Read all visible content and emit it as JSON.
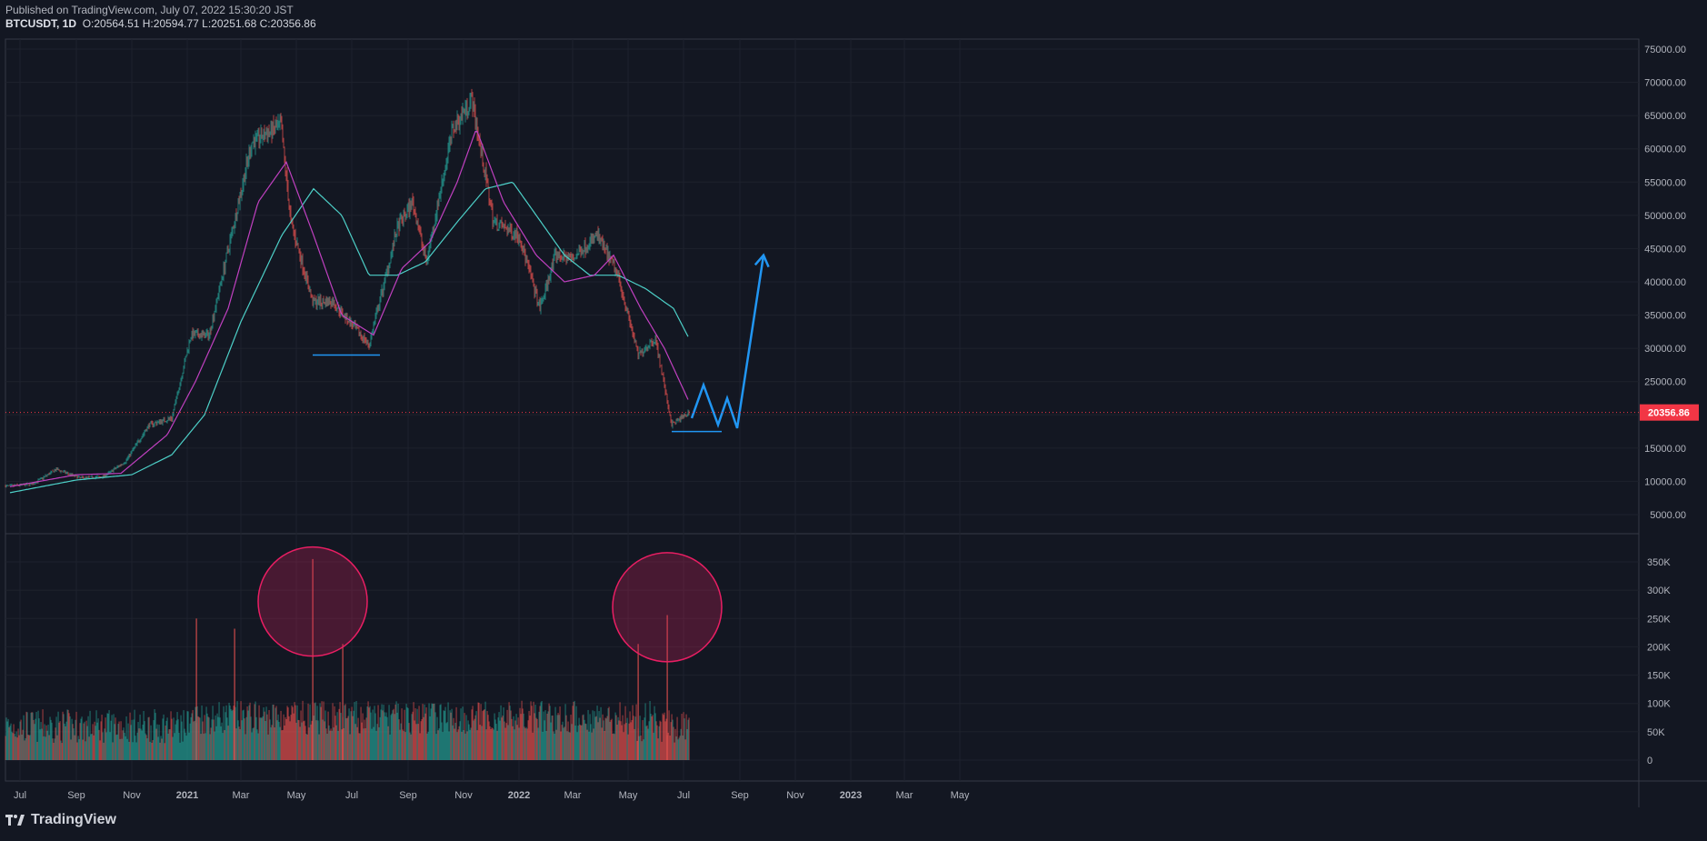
{
  "header": {
    "published": "Published on TradingView.com, July 07, 2022 15:30:20 JST",
    "symbol": "BTCUSDT, 1D",
    "o_label": "O:",
    "o": "20564.51",
    "h_label": "H:",
    "h": "20594.77",
    "l_label": "L:",
    "l": "20251.68",
    "c_label": "C:",
    "c": "20356.86"
  },
  "footer": {
    "brand": "TradingView"
  },
  "colors": {
    "background": "#131722",
    "up": "#26a69a",
    "down": "#ef5350",
    "ma_fast": "#c040c0",
    "ma_slow": "#4dd0c8",
    "drawing": "#2196f3",
    "price_badge": "#f23645",
    "circle": "#e91e63"
  },
  "chart_data": [
    {
      "type": "candlestick",
      "symbol": "BTCUSDT",
      "interval": "1D",
      "x_ticks": [
        "Jul",
        "Sep",
        "Nov",
        "2021",
        "Mar",
        "May",
        "Jul",
        "Sep",
        "Nov",
        "2022",
        "Mar",
        "May",
        "Jul",
        "Sep",
        "Nov",
        "2023",
        "Mar",
        "May"
      ],
      "y_ticks": [
        "5000.00",
        "10000.00",
        "15000.00",
        "20000.00",
        "25000.00",
        "30000.00",
        "35000.00",
        "40000.00",
        "45000.00",
        "50000.00",
        "55000.00",
        "60000.00",
        "65000.00",
        "70000.00",
        "75000.00"
      ],
      "ylim": [
        0,
        78000
      ],
      "last_price": "20356.86",
      "price_path": {
        "dates": [
          "2020-06-20",
          "2020-07-15",
          "2020-08-10",
          "2020-09-05",
          "2020-10-01",
          "2020-10-25",
          "2020-11-20",
          "2020-12-15",
          "2021-01-05",
          "2021-01-25",
          "2021-02-20",
          "2021-03-13",
          "2021-04-14",
          "2021-04-25",
          "2021-05-19",
          "2021-06-10",
          "2021-07-20",
          "2021-08-20",
          "2021-09-06",
          "2021-09-21",
          "2021-10-20",
          "2021-11-10",
          "2021-12-04",
          "2022-01-01",
          "2022-01-24",
          "2022-02-10",
          "2022-03-01",
          "2022-03-28",
          "2022-04-20",
          "2022-05-12",
          "2022-05-31",
          "2022-06-18",
          "2022-07-07"
        ],
        "close": [
          9300,
          9600,
          11800,
          10500,
          10700,
          13000,
          18500,
          19500,
          32000,
          32000,
          48000,
          61000,
          63500,
          49000,
          37000,
          37000,
          30500,
          48000,
          52000,
          43000,
          63000,
          67500,
          49000,
          47000,
          36000,
          44000,
          43500,
          47000,
          41000,
          29000,
          31500,
          18500,
          20356
        ]
      },
      "ma_fast": {
        "dates": [
          "2020-06-20",
          "2020-09-01",
          "2020-10-20",
          "2020-12-10",
          "2021-01-10",
          "2021-02-15",
          "2021-03-20",
          "2021-04-20",
          "2021-05-20",
          "2021-06-20",
          "2021-07-25",
          "2021-08-25",
          "2021-09-25",
          "2021-10-25",
          "2021-11-15",
          "2021-12-15",
          "2022-01-20",
          "2022-02-20",
          "2022-03-25",
          "2022-04-15",
          "2022-05-15",
          "2022-06-10",
          "2022-07-07"
        ],
        "value": [
          9200,
          11000,
          11200,
          17000,
          25000,
          36000,
          52000,
          58000,
          47000,
          35000,
          32000,
          42000,
          46000,
          55000,
          63000,
          52000,
          44000,
          40000,
          41000,
          44000,
          36000,
          30000,
          22000
        ]
      },
      "ma_slow": {
        "dates": [
          "2020-06-20",
          "2020-09-01",
          "2020-11-01",
          "2020-12-15",
          "2021-01-20",
          "2021-03-01",
          "2021-04-15",
          "2021-05-20",
          "2021-06-20",
          "2021-07-20",
          "2021-08-20",
          "2021-09-20",
          "2021-10-25",
          "2021-11-25",
          "2021-12-25",
          "2022-01-20",
          "2022-02-20",
          "2022-03-20",
          "2022-04-20",
          "2022-05-20",
          "2022-06-20",
          "2022-07-07"
        ],
        "value": [
          8300,
          10200,
          11000,
          14000,
          20000,
          34000,
          47000,
          54000,
          50000,
          41000,
          41000,
          43000,
          49000,
          54000,
          55000,
          50000,
          44000,
          41000,
          41000,
          39000,
          36000,
          31500
        ]
      },
      "annotations": {
        "support_2021": {
          "from": "2021-05-19",
          "to": "2021-08-01",
          "price": 29000
        },
        "support_2022": {
          "from": "2022-06-18",
          "to": "2022-08-12",
          "price": 17500
        },
        "projection": {
          "dates": [
            "2022-07-10",
            "2022-07-23",
            "2022-08-08",
            "2022-08-18",
            "2022-08-29",
            "2022-09-27"
          ],
          "price": [
            19500,
            24500,
            18500,
            22500,
            18000,
            44000
          ]
        }
      }
    },
    {
      "type": "bar",
      "name": "Volume",
      "y_ticks": [
        "0",
        "50K",
        "100K",
        "150K",
        "200K",
        "250K",
        "300K",
        "350K"
      ],
      "ylim": [
        0,
        360000
      ],
      "spikes": [
        {
          "date": "2021-05-19",
          "value": 355000
        },
        {
          "date": "2021-01-11",
          "value": 250000
        },
        {
          "date": "2021-02-22",
          "value": 232000
        },
        {
          "date": "2021-06-21",
          "value": 205000
        },
        {
          "date": "2022-05-12",
          "value": 205000
        },
        {
          "date": "2022-06-13",
          "value": 256000
        }
      ],
      "highlights": [
        {
          "date": "2021-05-19",
          "value": 280000
        },
        {
          "date": "2022-06-13",
          "value": 270000
        }
      ]
    }
  ]
}
